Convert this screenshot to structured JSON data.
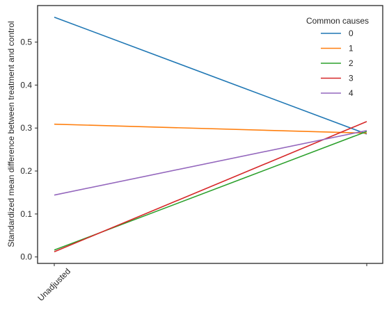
{
  "chart_data": {
    "type": "line",
    "ylabel": "Standardized mean difference between treatment and control",
    "x_tick_labels": [
      "Unadjusted",
      ""
    ],
    "x": [
      0,
      1
    ],
    "ylim": [
      -0.015,
      0.585
    ],
    "yticks": [
      0.0,
      0.1,
      0.2,
      0.3,
      0.4,
      0.5
    ],
    "ytick_labels": [
      "0.0",
      "0.1",
      "0.2",
      "0.3",
      "0.4",
      "0.5"
    ],
    "grid": false,
    "legend": {
      "title": "Common causes",
      "placement": "top-right"
    },
    "series": [
      {
        "name": "0",
        "color": "#1f77b4",
        "values": [
          0.558,
          0.286
        ]
      },
      {
        "name": "1",
        "color": "#ff7f0e",
        "values": [
          0.309,
          0.288
        ]
      },
      {
        "name": "2",
        "color": "#2ca02c",
        "values": [
          0.016,
          0.292
        ]
      },
      {
        "name": "3",
        "color": "#d62728",
        "values": [
          0.012,
          0.315
        ]
      },
      {
        "name": "4",
        "color": "#9467bd",
        "values": [
          0.144,
          0.294
        ]
      }
    ]
  }
}
